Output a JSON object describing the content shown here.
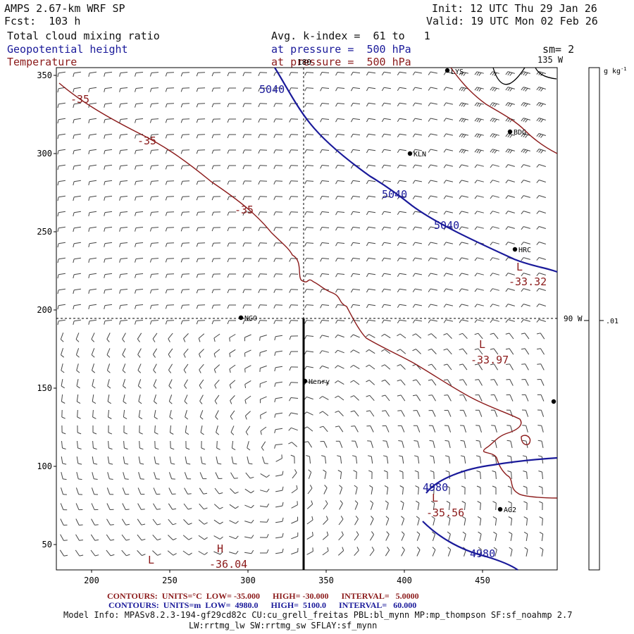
{
  "header": {
    "model": "AMPS 2.67-km WRF SP",
    "fcst": "Fcst:  103 h",
    "init": "Init: 12 UTC Thu 29 Jan 26",
    "valid": "Valid: 19 UTC Mon 02 Feb 26",
    "field1": "Total cloud mixing ratio",
    "field2": "Geopotential height",
    "field3": "Temperature",
    "avg": "Avg. k-index =  61 to   1",
    "pres1": "at pressure =  500 hPa",
    "pres2": "at pressure =  500 hPa",
    "sm": "sm= 2",
    "lon135": "135 W",
    "lon180": "180",
    "lon90": "90 W"
  },
  "colorbar": {
    "unit": "g kg",
    "unit_sup": "-1",
    "tick": ".01"
  },
  "axes": {
    "x_ticks": [
      "200",
      "250",
      "300",
      "350",
      "400",
      "450"
    ],
    "y_ticks": [
      "350",
      "300",
      "250",
      "200",
      "150",
      "100",
      "50"
    ]
  },
  "stations": [
    {
      "name": "LYS"
    },
    {
      "name": "BDG"
    },
    {
      "name": "KLN"
    },
    {
      "name": "HRC"
    },
    {
      "name": "NGO"
    },
    {
      "name": "Henry"
    },
    {
      "name": "AG2"
    }
  ],
  "contour_labels": {
    "temp": [
      "-35",
      "-35",
      "-35",
      "L",
      "-33.32",
      "L",
      "-33.97",
      "L",
      "-35.56",
      "H",
      "-36.04",
      "L"
    ],
    "height": [
      "5040",
      "5040",
      "5040",
      "4980",
      "4980"
    ]
  },
  "footer": {
    "red_line": "CONTOURS:  UNITS=°C  LOW= -35.000      HIGH= -30.000      INTERVAL=   5.0000",
    "blue_line": "CONTOURS:  UNITS=m  LOW=  4980.0      HIGH=  5100.0      INTERVAL=   60.000",
    "info1": "Model Info: MPASv8.2.3-194-gf29cd82c CU:cu_grell_freitas PBL:bl_mynn MP:mp_thompson SF:sf_noahmp 2.7",
    "info2": "LW:rrtmg_lw SW:rrtmg_sw SFLAY:sf_mynn"
  },
  "colors": {
    "temperature": "#8b1a1a",
    "height": "#1a1a9a",
    "text": "#111111"
  }
}
